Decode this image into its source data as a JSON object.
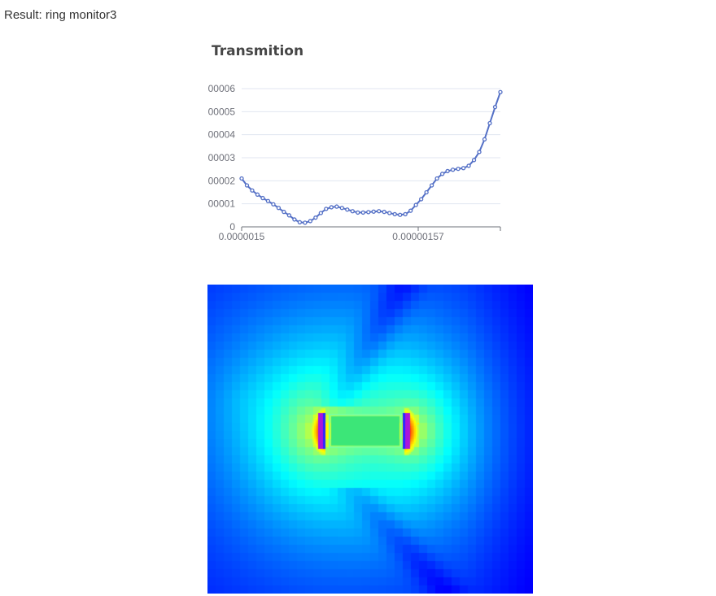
{
  "result": {
    "label": "Result: ring monitor3"
  },
  "chart_data": {
    "type": "line",
    "title": "Transmition",
    "xlabel": "",
    "ylabel": "",
    "x_tick_labels": [
      "0.0000015",
      "0.00000157"
    ],
    "y_tick_labels": [
      "0",
      "00001",
      "00002",
      "00003",
      "00004",
      "00005",
      "00006"
    ],
    "ylim": [
      0,
      6
    ],
    "grid": true,
    "legend": "none",
    "series_color": "#5470c6",
    "series": [
      {
        "values": [
          2.1,
          1.8,
          1.58,
          1.4,
          1.25,
          1.12,
          0.98,
          0.82,
          0.65,
          0.5,
          0.32,
          0.2,
          0.18,
          0.25,
          0.4,
          0.6,
          0.78,
          0.85,
          0.88,
          0.82,
          0.75,
          0.68,
          0.62,
          0.62,
          0.64,
          0.66,
          0.68,
          0.65,
          0.6,
          0.55,
          0.52,
          0.55,
          0.7,
          0.95,
          1.2,
          1.5,
          1.8,
          2.1,
          2.3,
          2.42,
          2.48,
          2.52,
          2.55,
          2.65,
          2.9,
          3.25,
          3.8,
          4.5,
          5.2,
          5.85
        ]
      }
    ]
  },
  "field": {
    "colormap": "jet"
  }
}
